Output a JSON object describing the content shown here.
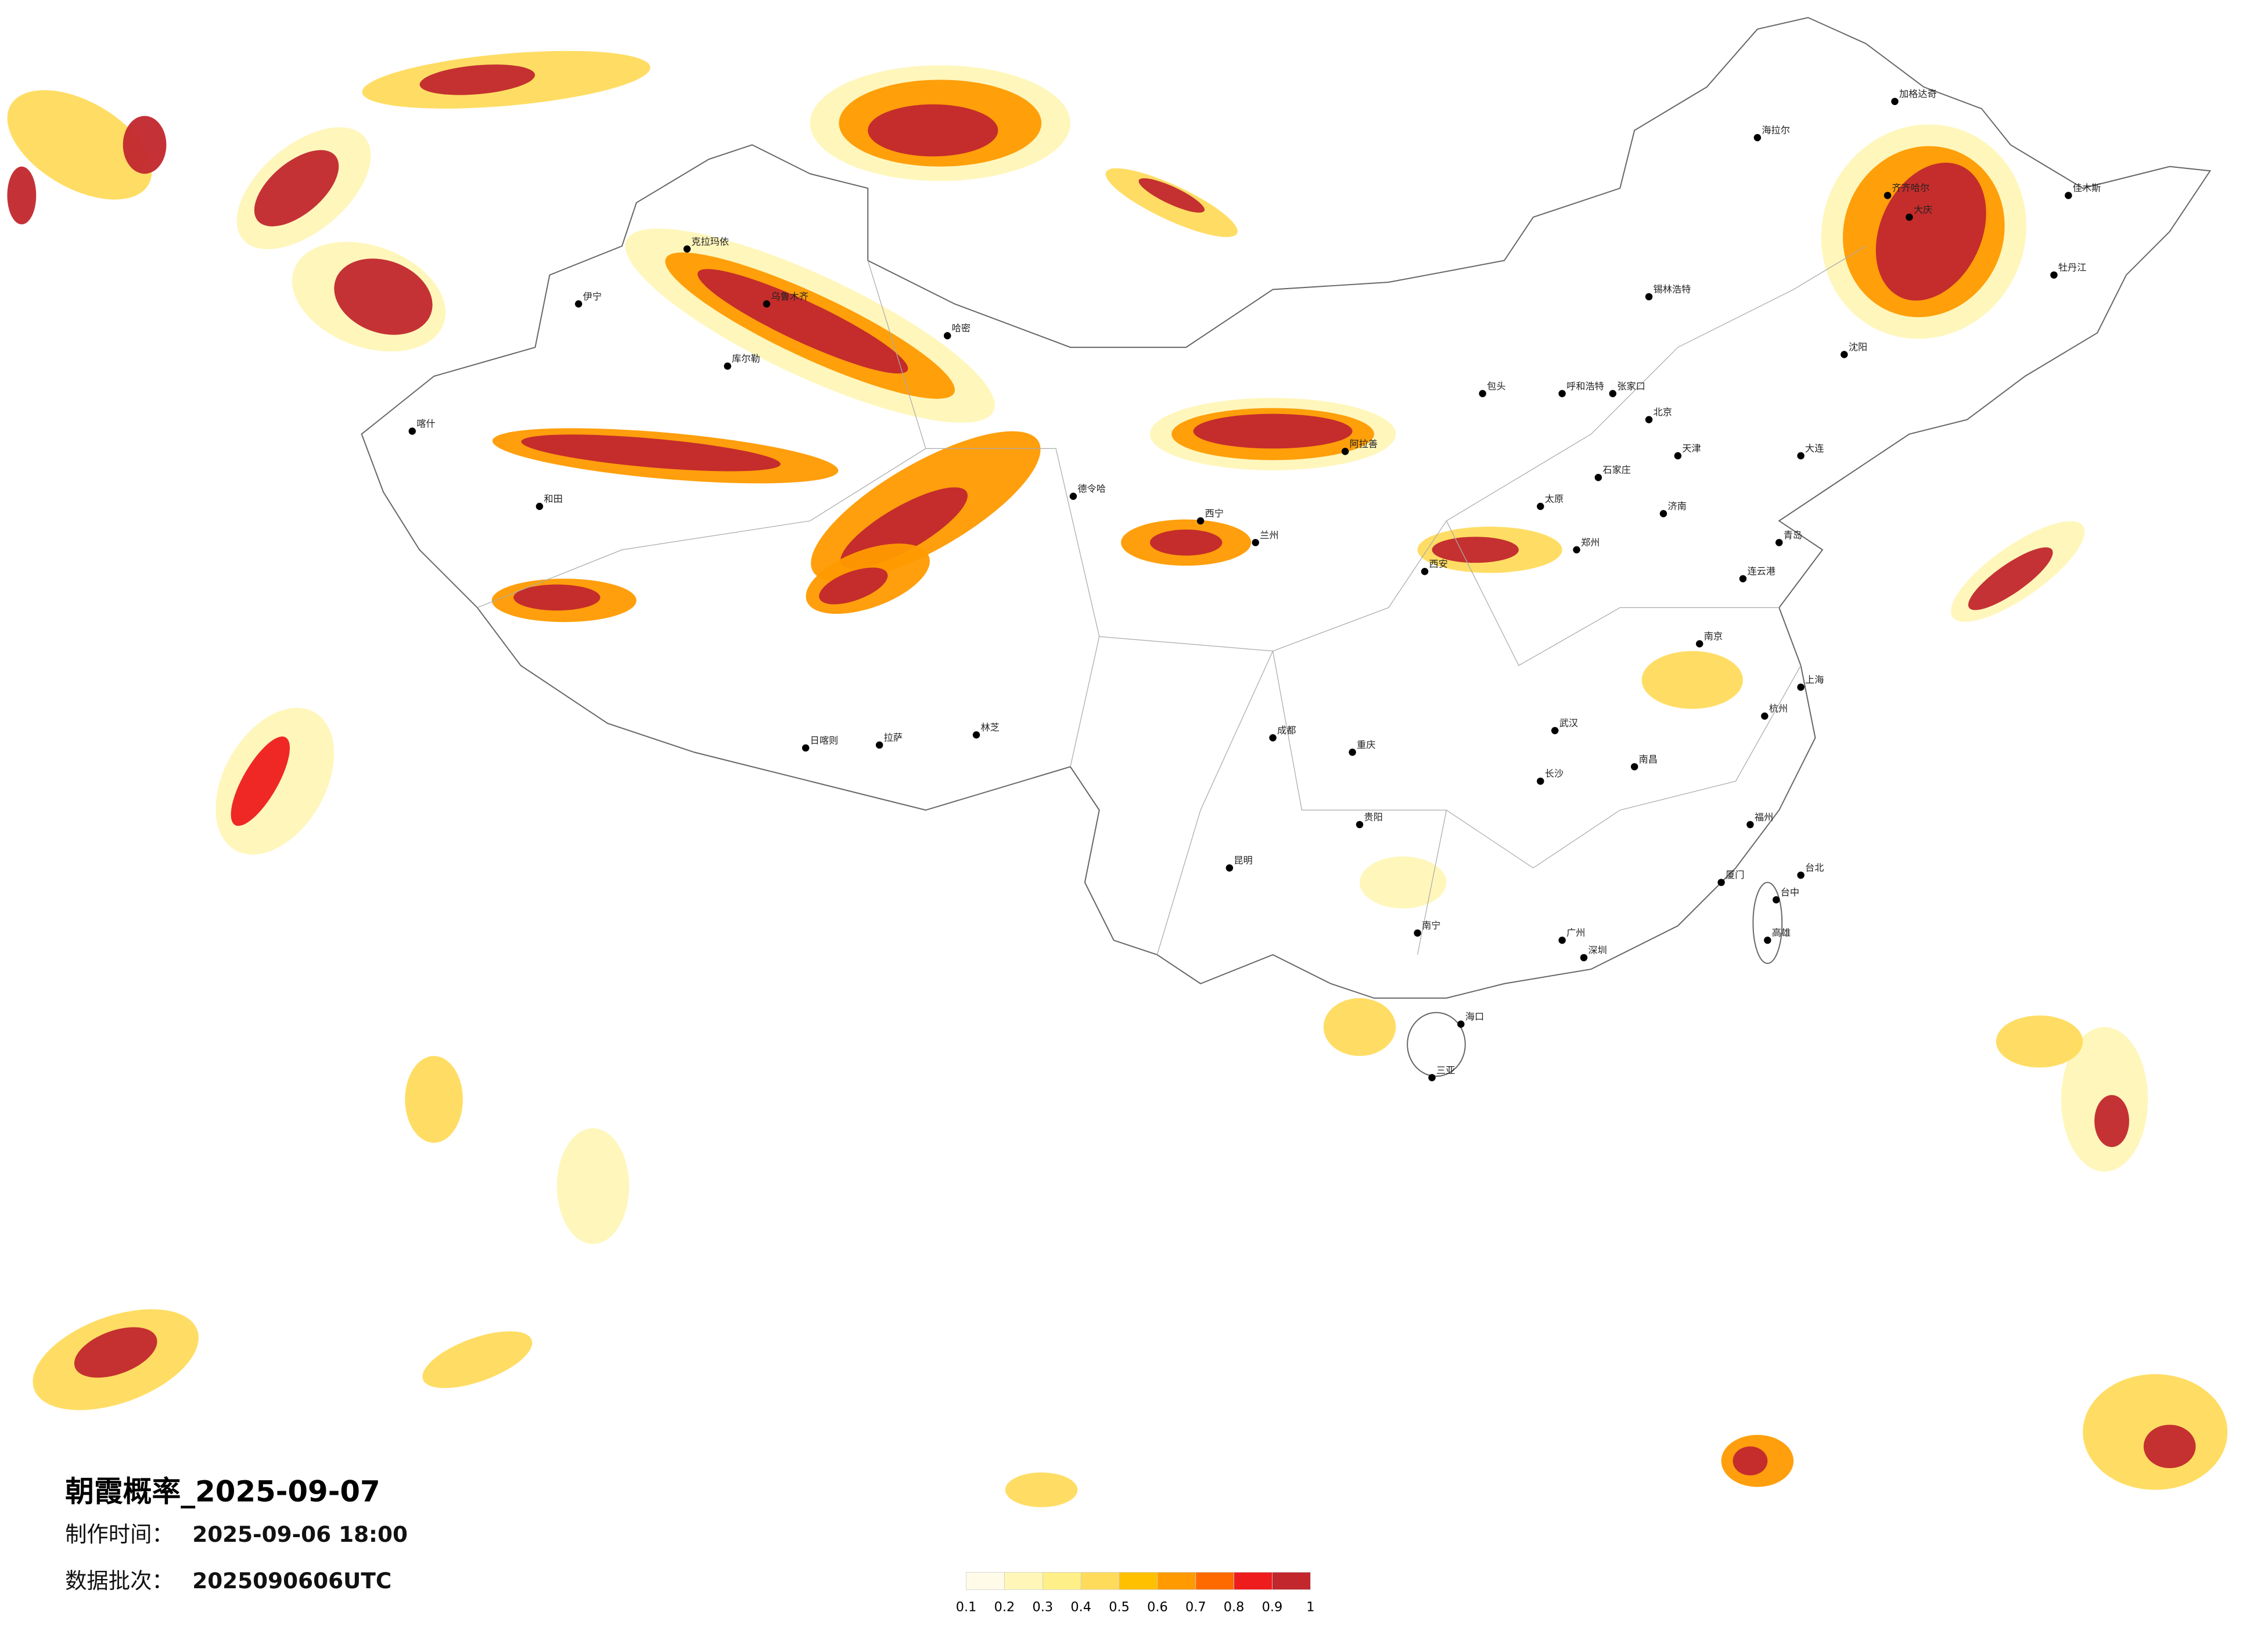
{
  "title": "朝霞概率_2025-09-07",
  "made_label": "制作时间：",
  "made_time": "2025-09-06 18:00",
  "batch_label": "数据批次：",
  "batch": "2025090606UTC",
  "legend": {
    "colors": [
      "#fffbe8",
      "#fff6b8",
      "#ffef88",
      "#ffdb5c",
      "#ffc000",
      "#ff9a00",
      "#ff6a00",
      "#ee1c1c",
      "#c1272d"
    ],
    "ticks": [
      0.1,
      0.2,
      0.3,
      0.4,
      0.5,
      0.6,
      0.7,
      0.8,
      0.9,
      1
    ]
  },
  "cities": [
    "海拉尔",
    "加格达奇",
    "齐齐哈尔",
    "大庆",
    "佳木斯",
    "牡丹江",
    "锡林浩特",
    "呼和浩特",
    "包头",
    "张家口",
    "北京",
    "天津",
    "石家庄",
    "太原",
    "阿拉善",
    "西宁",
    "兰州",
    "西安",
    "郑州",
    "济南",
    "青岛",
    "连云港",
    "南京",
    "上海",
    "杭州",
    "武汉",
    "长沙",
    "南昌",
    "福州",
    "厦门",
    "广州",
    "深圳",
    "南宁",
    "海口",
    "三亚",
    "昆明",
    "贵阳",
    "成都",
    "重庆",
    "拉萨",
    "日喀则",
    "林芝",
    "乌鲁木齐",
    "克拉玛依",
    "伊宁",
    "喀什",
    "和田",
    "库尔勒",
    "哈密",
    "德令哈",
    "台北",
    "台中",
    "高雄",
    "大连",
    "沈阳"
  ]
}
